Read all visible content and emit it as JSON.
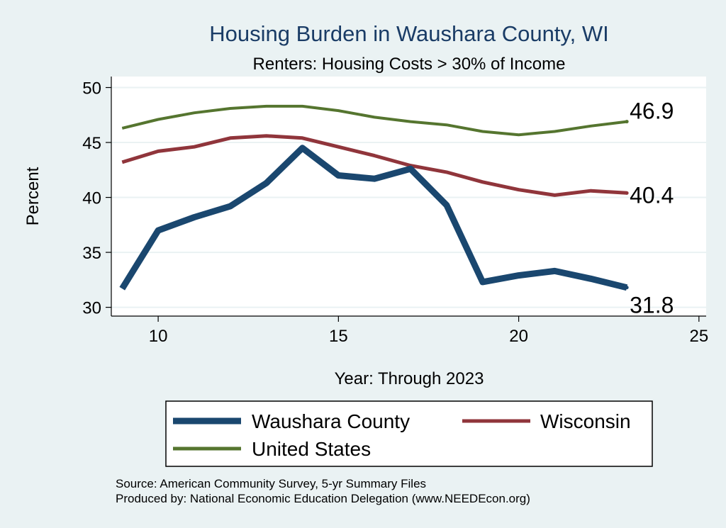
{
  "chart_data": {
    "type": "line",
    "title": "Housing Burden in Waushara County, WI",
    "subtitle": "Renters: Housing Costs > 30% of Income",
    "xlabel": "Year: Through 2023",
    "ylabel": "Percent",
    "xlim": [
      8.7,
      25.2
    ],
    "ylim": [
      29.2,
      51
    ],
    "x_ticks": [
      10,
      15,
      20,
      25
    ],
    "y_ticks": [
      30,
      35,
      40,
      45,
      50
    ],
    "grid": true,
    "legend_position": "bottom",
    "x": [
      9,
      10,
      11,
      12,
      13,
      14,
      15,
      16,
      17,
      18,
      19,
      20,
      21,
      22,
      23
    ],
    "series": [
      {
        "name": "Waushara County",
        "color": "#1a476f",
        "values": [
          31.7,
          37.0,
          38.2,
          39.2,
          41.3,
          44.5,
          42.0,
          41.7,
          42.6,
          39.3,
          32.3,
          32.9,
          33.3,
          32.6,
          31.8
        ],
        "end_label": "31.8"
      },
      {
        "name": "Wisconsin",
        "color": "#90353b",
        "values": [
          43.2,
          44.2,
          44.6,
          45.4,
          45.6,
          45.4,
          44.6,
          43.8,
          42.9,
          42.3,
          41.4,
          40.7,
          40.2,
          40.6,
          40.4
        ],
        "end_label": "40.4"
      },
      {
        "name": "United States",
        "color": "#55752f",
        "values": [
          46.3,
          47.1,
          47.7,
          48.1,
          48.3,
          48.3,
          47.9,
          47.3,
          46.9,
          46.6,
          46.0,
          45.7,
          46.0,
          46.5,
          46.9
        ],
        "end_label": "46.9"
      }
    ]
  },
  "source": {
    "line1": "Source: American Community Survey, 5-yr Summary Files",
    "line2": "Produced by: National Economic Education Delegation (www.NEEDEcon.org)"
  }
}
